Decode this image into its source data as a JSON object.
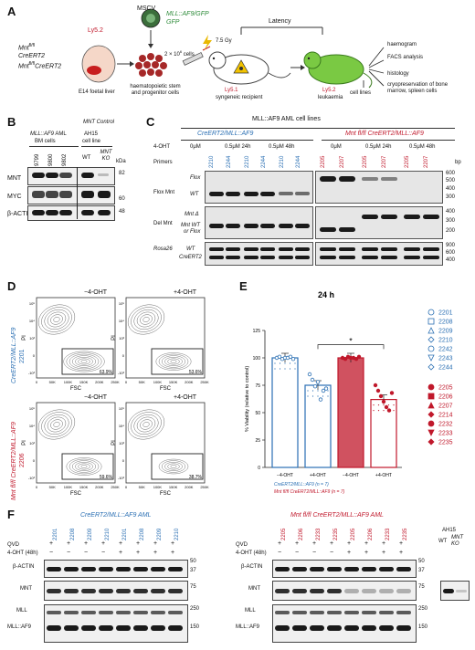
{
  "panelA": {
    "label": "A",
    "ly52": "Ly5.2",
    "genotypes": [
      "Mnt",
      "fl/fl",
      "CreERT2",
      "Mnt",
      "fl/fl",
      "CreERT2"
    ],
    "foetal_liver": "E14 foetal liver",
    "mscv": "MSCV",
    "construct_line1": "MLL::AF9/GFP",
    "construct_line2": "GFP",
    "cells_label": "haematopoietic stem and progenitor cells",
    "injection": "2 × 10",
    "injection_exp": "6",
    "injection_units": "cells",
    "dose": "7.5 Gy",
    "latency": "Latency",
    "recipient_ly": "Ly5.1",
    "recipient": "syngeneic recipient",
    "leuk_ly": "Ly5.2",
    "leukaemia": "leukaemia",
    "outcomes": [
      "haemogram",
      "FACS analysis",
      "histology",
      "cryopreservation of bone marrow, spleen cells",
      "cell lines"
    ]
  },
  "panelB": {
    "label": "B",
    "control_header": "MNT Control",
    "group1_line1": "MLL::AF9",
    "group1_line1b": "AML",
    "group1_line2": "BM cells",
    "group2_line1": "AH15",
    "group2_line2": "cell line",
    "lanes": [
      "9799",
      "9800",
      "9802",
      "WT",
      "MNT KO"
    ],
    "rows": [
      "MNT",
      "MYC",
      "β-ACTIN"
    ],
    "kda_title": "kDa",
    "kda": [
      "82",
      "60",
      "48"
    ]
  },
  "panelC": {
    "label": "C",
    "title": "MLL::AF9 AML cell lines",
    "group_blue": "CreERT2/MLL::AF9",
    "group_red": "Mnt fl/fl CreERT2/MLL::AF9",
    "ohtx": "4-OHT",
    "conds": [
      "0μM",
      "0.5μM 24h",
      "0.5μM 48h",
      "0μM",
      "0.5μM 24h",
      "0.5μM 48h"
    ],
    "primers": "Primers",
    "lanes_blue": [
      "2210",
      "2244",
      "2210",
      "2244",
      "2210",
      "2244"
    ],
    "lanes_red": [
      "2205",
      "2207",
      "2205",
      "2207",
      "2205",
      "2207"
    ],
    "bp": "bp",
    "rows": [
      "Flox Mnt",
      "Del Mnt",
      "Rosa26"
    ],
    "sub_flox": [
      "Flox",
      "WT"
    ],
    "sub_del": [
      "Mnt Δ",
      "Mnt WT",
      "or Flox"
    ],
    "sub_rosa": [
      "WT",
      "CreERT2"
    ],
    "bp_flox": [
      "600",
      "500",
      "400",
      "300"
    ],
    "bp_del": [
      "400",
      "300",
      "200"
    ],
    "bp_rosa": [
      "900",
      "600",
      "400"
    ]
  },
  "panelD": {
    "label": "D",
    "neg": "−4-OHT",
    "pos": "+4-OHT",
    "row1_line1": "CreERT2/MLL::AF9",
    "row1_line2": "2201",
    "row2_line1": "Mnt fl/fl CreERT2/MLL::AF9",
    "row2_line2": "2206",
    "ylabel": "PI",
    "xlabel": "FSC",
    "xticks": [
      "0",
      "50K",
      "100K",
      "150K",
      "200K",
      "250K"
    ],
    "yticks": [
      "10⁵",
      "10⁴",
      "10³",
      "0",
      "-10³"
    ],
    "pct": [
      "63.9%",
      "53.6%",
      "59.6%",
      "38.7%"
    ]
  },
  "panelE": {
    "label": "E",
    "title": "24 h",
    "ylabel": "% Viability (relative to control)",
    "yticks": [
      "0",
      "25",
      "50",
      "75",
      "100",
      "125"
    ],
    "xticks": [
      "−4-OHT",
      "+4-OHT",
      "−4-OHT",
      "+4-OHT"
    ],
    "sig": "*",
    "legend_blue": "CreERT2/MLL::AF9 (n = 7)",
    "legend_red": "Mnt fl/fl CreERT2/MLL::AF9 (n = 7)",
    "ids_blue": [
      "2201",
      "2208",
      "2209",
      "2210",
      "2242",
      "2243",
      "2244"
    ],
    "ids_red": [
      "2205",
      "2206",
      "2207",
      "2214",
      "2232",
      "2233",
      "2235"
    ]
  },
  "chart_data": {
    "type": "bar",
    "title": "24 h",
    "ylabel": "% Viability (relative to control)",
    "ylim": [
      0,
      125
    ],
    "categories": [
      "−4-OHT",
      "+4-OHT",
      "−4-OHT",
      "+4-OHT"
    ],
    "values": [
      100,
      75,
      100,
      62
    ],
    "colors": [
      "#2a6fb3",
      "#2a6fb3",
      "#c0182b",
      "#c0182b"
    ],
    "points": [
      [
        100,
        101,
        99,
        100,
        100,
        101,
        99
      ],
      [
        85,
        80,
        74,
        78,
        62,
        70,
        72
      ],
      [
        100,
        99,
        101,
        100,
        100,
        99,
        101
      ],
      [
        75,
        70,
        65,
        60,
        55,
        52,
        68
      ]
    ]
  },
  "panelF": {
    "label": "F",
    "left_title": "CreERT2/MLL::AF9 AML",
    "right_title": "Mnt fl/fl CreERT2/MLL::AF9 AML",
    "lanes_left": [
      "2201",
      "2208",
      "2209",
      "2210",
      "2201",
      "2208",
      "2209",
      "2210"
    ],
    "lanes_right": [
      "2205",
      "2206",
      "2233",
      "2235",
      "2205",
      "2206",
      "2233",
      "2235"
    ],
    "qvd": "QVD",
    "oht": "4-OHT (48h)",
    "plus": "+",
    "minus": "−",
    "rows": [
      "β-ACTIN",
      "MNT",
      "MLL",
      "MLL::AF9"
    ],
    "kda_left": [
      "50",
      "37",
      "75",
      "250",
      "150"
    ],
    "ah15": "AH15",
    "ah15_lanes": [
      "WT",
      "MNT KO"
    ]
  }
}
